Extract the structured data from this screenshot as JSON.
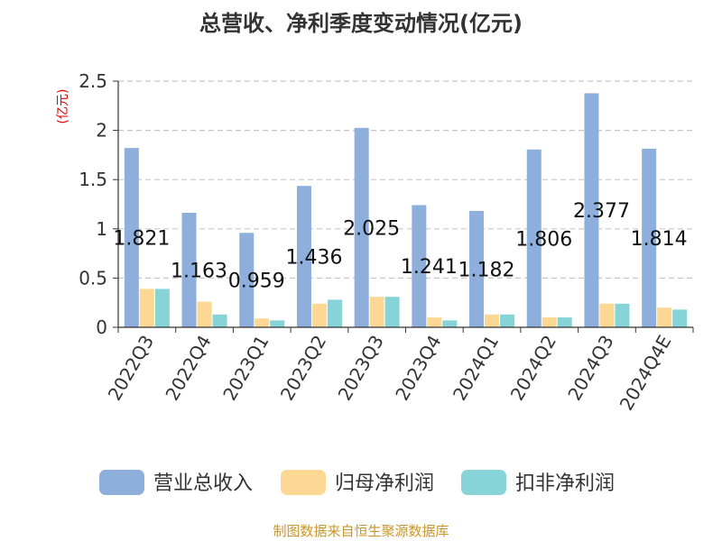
{
  "chart_data": {
    "type": "bar",
    "title": "总营收、净利季度变动情况(亿元)",
    "unit_label": "(亿元)",
    "categories": [
      "2022Q3",
      "2022Q4",
      "2023Q1",
      "2023Q2",
      "2023Q3",
      "2023Q4",
      "2024Q1",
      "2024Q2",
      "2024Q3",
      "2024Q4E"
    ],
    "series": [
      {
        "name": "营业总收入",
        "color": "#8eaedc",
        "values": [
          1.821,
          1.163,
          0.959,
          1.436,
          2.025,
          1.241,
          1.182,
          1.806,
          2.377,
          1.814
        ]
      },
      {
        "name": "归母净利润",
        "color": "#fdd894",
        "values": [
          0.39,
          0.26,
          0.09,
          0.24,
          0.31,
          0.1,
          0.13,
          0.1,
          0.24,
          0.2
        ]
      },
      {
        "name": "扣非净利润",
        "color": "#86d4d8",
        "values": [
          0.39,
          0.13,
          0.07,
          0.28,
          0.31,
          0.07,
          0.13,
          0.1,
          0.24,
          0.18
        ]
      }
    ],
    "data_labels": [
      "1.821",
      "1.163",
      "0.959",
      "1.436",
      "2.025",
      "1.241",
      "1.182",
      "1.806",
      "2.377",
      "1.814"
    ],
    "y_ticks": [
      "0",
      "0.5",
      "1",
      "1.5",
      "2",
      "2.5"
    ],
    "ylim": [
      0,
      2.5
    ],
    "grid": "horizontal dashed",
    "legend_position": "bottom"
  },
  "source": "制图数据来自恒生聚源数据库"
}
